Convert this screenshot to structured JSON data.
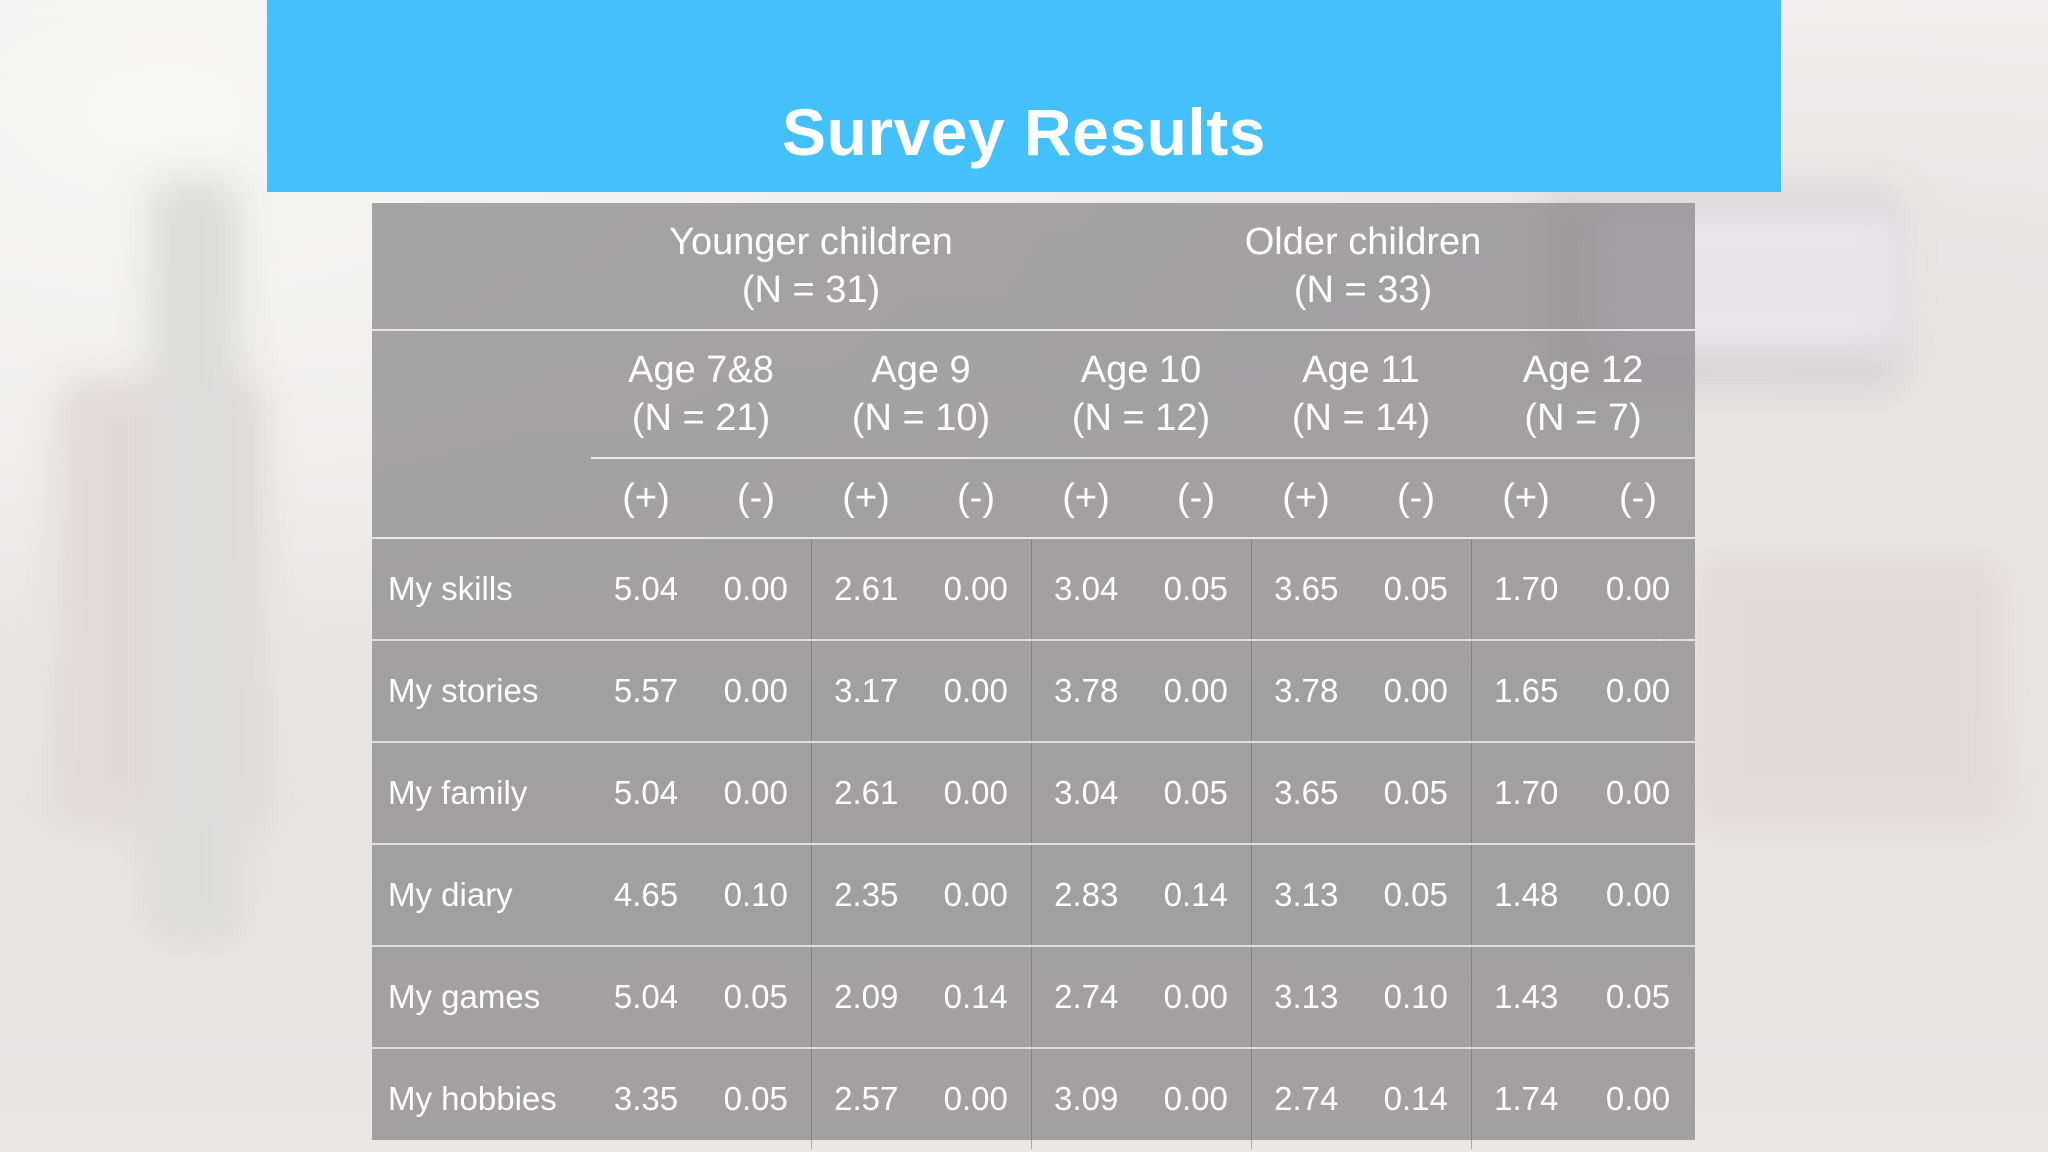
{
  "slide": {
    "title": "Survey Results"
  },
  "table": {
    "groups": [
      {
        "label": "Younger children",
        "n": "(N = 31)"
      },
      {
        "label": "Older children",
        "n": "(N = 33)"
      }
    ],
    "ages": [
      {
        "label": "Age 7&8",
        "n": "(N = 21)"
      },
      {
        "label": "Age 9",
        "n": "(N = 10)"
      },
      {
        "label": "Age 10",
        "n": "(N = 12)"
      },
      {
        "label": "Age 11",
        "n": "(N = 14)"
      },
      {
        "label": "Age 12",
        "n": "(N = 7)"
      }
    ],
    "signs": {
      "plus": "(+)",
      "minus": "(-)"
    },
    "rows": [
      {
        "label": "My skills",
        "values": [
          "5.04",
          "0.00",
          "2.61",
          "0.00",
          "3.04",
          "0.05",
          "3.65",
          "0.05",
          "1.70",
          "0.00"
        ]
      },
      {
        "label": "My stories",
        "values": [
          "5.57",
          "0.00",
          "3.17",
          "0.00",
          "3.78",
          "0.00",
          "3.78",
          "0.00",
          "1.65",
          "0.00"
        ]
      },
      {
        "label": "My family",
        "values": [
          "5.04",
          "0.00",
          "2.61",
          "0.00",
          "3.04",
          "0.05",
          "3.65",
          "0.05",
          "1.70",
          "0.00"
        ]
      },
      {
        "label": "My diary",
        "values": [
          "4.65",
          "0.10",
          "2.35",
          "0.00",
          "2.83",
          "0.14",
          "3.13",
          "0.05",
          "1.48",
          "0.00"
        ]
      },
      {
        "label": "My games",
        "values": [
          "5.04",
          "0.05",
          "2.09",
          "0.14",
          "2.74",
          "0.00",
          "3.13",
          "0.10",
          "1.43",
          "0.05"
        ]
      },
      {
        "label": "My hobbies",
        "values": [
          "3.35",
          "0.05",
          "2.57",
          "0.00",
          "3.09",
          "0.00",
          "2.74",
          "0.14",
          "1.74",
          "0.00"
        ]
      }
    ]
  },
  "colors": {
    "title_band": "#44c1fb",
    "table_fill": "#878586",
    "text": "#ffffff"
  }
}
